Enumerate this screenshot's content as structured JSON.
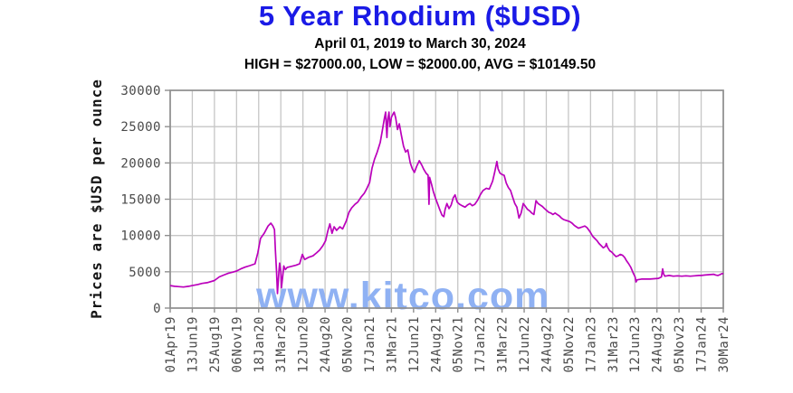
{
  "header": {
    "title": "5 Year Rhodium ($USD)",
    "date_range": "April 01, 2019 to March 30, 2024",
    "stats": "HIGH = $27000.00, LOW = $2000.00, AVG = $10149.50"
  },
  "watermark": "www.kitco.com",
  "colors": {
    "title": "#1a1ae6",
    "line": "#bb00bb",
    "grid": "#c6c6c6",
    "border": "#8f8f8f",
    "watermark": "#8fb1f3",
    "tick_text": "#4a4a4a"
  },
  "chart_data": {
    "type": "line",
    "title": "5 Year Rhodium ($USD)",
    "subtitle": "April 01, 2019 to March 30, 2024",
    "high": 27000.0,
    "low": 2000.0,
    "avg": 10149.5,
    "xlabel": "",
    "ylabel": "Prices are $USD per ounce",
    "ylim": [
      0,
      30000
    ],
    "yticks": [
      0,
      5000,
      10000,
      15000,
      20000,
      25000,
      30000
    ],
    "grid": true,
    "legend": "none",
    "xticks": [
      "01Apr19",
      "13Jun19",
      "25Aug19",
      "06Nov19",
      "18Jan20",
      "31Mar20",
      "12Jun20",
      "24Aug20",
      "05Nov20",
      "17Jan21",
      "31Mar21",
      "12Jun21",
      "24Aug21",
      "05Nov21",
      "17Jan22",
      "31Mar22",
      "12Jun22",
      "24Aug22",
      "05Nov22",
      "17Jan23",
      "31Mar23",
      "12Jun23",
      "24Aug23",
      "05Nov23",
      "17Jan24",
      "30Mar24"
    ],
    "points": [
      [
        "2019-04-01",
        3100
      ],
      [
        "2019-04-15",
        3000
      ],
      [
        "2019-05-01",
        2950
      ],
      [
        "2019-05-15",
        2900
      ],
      [
        "2019-06-01",
        3000
      ],
      [
        "2019-06-13",
        3100
      ],
      [
        "2019-07-01",
        3250
      ],
      [
        "2019-07-15",
        3400
      ],
      [
        "2019-08-01",
        3500
      ],
      [
        "2019-08-25",
        3800
      ],
      [
        "2019-09-10",
        4300
      ],
      [
        "2019-09-25",
        4550
      ],
      [
        "2019-10-10",
        4800
      ],
      [
        "2019-10-25",
        4950
      ],
      [
        "2019-11-06",
        5100
      ],
      [
        "2019-11-20",
        5400
      ],
      [
        "2019-12-05",
        5650
      ],
      [
        "2019-12-20",
        5850
      ],
      [
        "2020-01-06",
        6100
      ],
      [
        "2020-01-15",
        7600
      ],
      [
        "2020-01-24",
        9600
      ],
      [
        "2020-02-05",
        10300
      ],
      [
        "2020-02-18",
        11300
      ],
      [
        "2020-02-27",
        11700
      ],
      [
        "2020-03-05",
        11300
      ],
      [
        "2020-03-10",
        10800
      ],
      [
        "2020-03-13",
        8000
      ],
      [
        "2020-03-17",
        5000
      ],
      [
        "2020-03-20",
        2000
      ],
      [
        "2020-03-25",
        5200
      ],
      [
        "2020-03-27",
        6200
      ],
      [
        "2020-03-31",
        5000
      ],
      [
        "2020-04-02",
        2800
      ],
      [
        "2020-04-07",
        4600
      ],
      [
        "2020-04-10",
        5800
      ],
      [
        "2020-04-15",
        5300
      ],
      [
        "2020-04-21",
        5600
      ],
      [
        "2020-05-01",
        5700
      ],
      [
        "2020-05-20",
        5900
      ],
      [
        "2020-06-01",
        6100
      ],
      [
        "2020-06-10",
        7400
      ],
      [
        "2020-06-18",
        6700
      ],
      [
        "2020-07-01",
        7000
      ],
      [
        "2020-07-15",
        7200
      ],
      [
        "2020-07-27",
        7600
      ],
      [
        "2020-08-06",
        8000
      ],
      [
        "2020-08-17",
        8600
      ],
      [
        "2020-08-26",
        9300
      ],
      [
        "2020-09-02",
        10600
      ],
      [
        "2020-09-09",
        11600
      ],
      [
        "2020-09-16",
        10300
      ],
      [
        "2020-09-23",
        11200
      ],
      [
        "2020-10-01",
        10700
      ],
      [
        "2020-10-12",
        11200
      ],
      [
        "2020-10-21",
        10900
      ],
      [
        "2020-11-02",
        12000
      ],
      [
        "2020-11-11",
        13200
      ],
      [
        "2020-11-20",
        13800
      ],
      [
        "2020-12-01",
        14300
      ],
      [
        "2020-12-10",
        14600
      ],
      [
        "2020-12-21",
        15300
      ],
      [
        "2020-12-31",
        15800
      ],
      [
        "2021-01-08",
        16400
      ],
      [
        "2021-01-18",
        17300
      ],
      [
        "2021-01-26",
        19300
      ],
      [
        "2021-02-03",
        20500
      ],
      [
        "2021-02-12",
        21500
      ],
      [
        "2021-02-22",
        22800
      ],
      [
        "2021-03-01",
        24500
      ],
      [
        "2021-03-08",
        26200
      ],
      [
        "2021-03-12",
        27000
      ],
      [
        "2021-03-16",
        23500
      ],
      [
        "2021-03-19",
        26000
      ],
      [
        "2021-03-23",
        27000
      ],
      [
        "2021-03-26",
        25000
      ],
      [
        "2021-03-31",
        26300
      ],
      [
        "2021-04-06",
        26800
      ],
      [
        "2021-04-09",
        27000
      ],
      [
        "2021-04-14",
        26200
      ],
      [
        "2021-04-20",
        24600
      ],
      [
        "2021-04-26",
        25400
      ],
      [
        "2021-05-03",
        23800
      ],
      [
        "2021-05-10",
        22300
      ],
      [
        "2021-05-17",
        21500
      ],
      [
        "2021-05-24",
        21800
      ],
      [
        "2021-06-01",
        20000
      ],
      [
        "2021-06-08",
        19200
      ],
      [
        "2021-06-15",
        18700
      ],
      [
        "2021-06-22",
        19500
      ],
      [
        "2021-07-01",
        20300
      ],
      [
        "2021-07-09",
        19700
      ],
      [
        "2021-07-16",
        19100
      ],
      [
        "2021-07-23",
        18600
      ],
      [
        "2021-07-30",
        18300
      ],
      [
        "2021-08-02",
        14300
      ],
      [
        "2021-08-04",
        18000
      ],
      [
        "2021-08-10",
        17100
      ],
      [
        "2021-08-16",
        16100
      ],
      [
        "2021-08-23",
        15200
      ],
      [
        "2021-08-30",
        14400
      ],
      [
        "2021-09-07",
        13500
      ],
      [
        "2021-09-14",
        12800
      ],
      [
        "2021-09-20",
        12600
      ],
      [
        "2021-09-24",
        13600
      ],
      [
        "2021-09-30",
        14400
      ],
      [
        "2021-10-07",
        13700
      ],
      [
        "2021-10-14",
        14200
      ],
      [
        "2021-10-21",
        15200
      ],
      [
        "2021-10-27",
        15600
      ],
      [
        "2021-11-03",
        14600
      ],
      [
        "2021-11-11",
        14300
      ],
      [
        "2021-11-19",
        14100
      ],
      [
        "2021-11-29",
        13900
      ],
      [
        "2021-12-07",
        14200
      ],
      [
        "2021-12-15",
        14400
      ],
      [
        "2021-12-23",
        14100
      ],
      [
        "2021-12-31",
        14300
      ],
      [
        "2022-01-10",
        14900
      ],
      [
        "2022-01-18",
        15600
      ],
      [
        "2022-01-27",
        16200
      ],
      [
        "2022-02-07",
        16500
      ],
      [
        "2022-02-17",
        16400
      ],
      [
        "2022-02-28",
        17500
      ],
      [
        "2022-03-07",
        18800
      ],
      [
        "2022-03-14",
        20200
      ],
      [
        "2022-03-18",
        19200
      ],
      [
        "2022-03-24",
        18600
      ],
      [
        "2022-03-31",
        18400
      ],
      [
        "2022-04-07",
        18300
      ],
      [
        "2022-04-14",
        17200
      ],
      [
        "2022-04-21",
        16600
      ],
      [
        "2022-04-28",
        16200
      ],
      [
        "2022-05-05",
        15300
      ],
      [
        "2022-05-12",
        14400
      ],
      [
        "2022-05-19",
        13900
      ],
      [
        "2022-05-26",
        12400
      ],
      [
        "2022-06-02",
        13100
      ],
      [
        "2022-06-09",
        14400
      ],
      [
        "2022-06-16",
        14000
      ],
      [
        "2022-06-23",
        13600
      ],
      [
        "2022-06-30",
        13400
      ],
      [
        "2022-07-07",
        13100
      ],
      [
        "2022-07-14",
        12900
      ],
      [
        "2022-07-21",
        14800
      ],
      [
        "2022-07-28",
        14400
      ],
      [
        "2022-08-04",
        14200
      ],
      [
        "2022-08-11",
        14000
      ],
      [
        "2022-08-18",
        13700
      ],
      [
        "2022-08-24",
        13500
      ],
      [
        "2022-09-01",
        13200
      ],
      [
        "2022-09-08",
        13100
      ],
      [
        "2022-09-15",
        12900
      ],
      [
        "2022-09-22",
        13100
      ],
      [
        "2022-09-29",
        12900
      ],
      [
        "2022-10-06",
        12700
      ],
      [
        "2022-10-13",
        12400
      ],
      [
        "2022-10-20",
        12200
      ],
      [
        "2022-10-27",
        12100
      ],
      [
        "2022-11-03",
        12000
      ],
      [
        "2022-11-10",
        11900
      ],
      [
        "2022-11-17",
        11700
      ],
      [
        "2022-11-24",
        11400
      ],
      [
        "2022-12-01",
        11200
      ],
      [
        "2022-12-08",
        11000
      ],
      [
        "2022-12-15",
        11100
      ],
      [
        "2022-12-22",
        11200
      ],
      [
        "2022-12-29",
        11300
      ],
      [
        "2023-01-05",
        11100
      ],
      [
        "2023-01-12",
        10700
      ],
      [
        "2023-01-17",
        10400
      ],
      [
        "2023-01-24",
        9900
      ],
      [
        "2023-01-31",
        9600
      ],
      [
        "2023-02-07",
        9300
      ],
      [
        "2023-02-14",
        8900
      ],
      [
        "2023-02-21",
        8600
      ],
      [
        "2023-02-28",
        8300
      ],
      [
        "2023-03-07",
        8500
      ],
      [
        "2023-03-10",
        8900
      ],
      [
        "2023-03-14",
        8400
      ],
      [
        "2023-03-21",
        7900
      ],
      [
        "2023-03-28",
        7700
      ],
      [
        "2023-04-04",
        7400
      ],
      [
        "2023-04-11",
        7100
      ],
      [
        "2023-04-18",
        7200
      ],
      [
        "2023-04-25",
        7400
      ],
      [
        "2023-05-02",
        7300
      ],
      [
        "2023-05-09",
        7000
      ],
      [
        "2023-05-16",
        6500
      ],
      [
        "2023-05-23",
        6100
      ],
      [
        "2023-05-30",
        5600
      ],
      [
        "2023-06-06",
        4900
      ],
      [
        "2023-06-13",
        4300
      ],
      [
        "2023-06-16",
        3600
      ],
      [
        "2023-06-20",
        3900
      ],
      [
        "2023-06-27",
        3950
      ],
      [
        "2023-07-04",
        4000
      ],
      [
        "2023-07-18",
        4000
      ],
      [
        "2023-08-01",
        4000
      ],
      [
        "2023-08-15",
        4050
      ],
      [
        "2023-08-29",
        4100
      ],
      [
        "2023-09-08",
        4300
      ],
      [
        "2023-09-12",
        5400
      ],
      [
        "2023-09-15",
        4700
      ],
      [
        "2023-09-19",
        4400
      ],
      [
        "2023-09-26",
        4450
      ],
      [
        "2023-10-03",
        4500
      ],
      [
        "2023-10-17",
        4400
      ],
      [
        "2023-10-31",
        4450
      ],
      [
        "2023-11-14",
        4400
      ],
      [
        "2023-11-28",
        4450
      ],
      [
        "2023-12-12",
        4400
      ],
      [
        "2023-12-26",
        4450
      ],
      [
        "2024-01-09",
        4500
      ],
      [
        "2024-01-17",
        4500
      ],
      [
        "2024-01-30",
        4550
      ],
      [
        "2024-02-13",
        4600
      ],
      [
        "2024-02-27",
        4650
      ],
      [
        "2024-03-05",
        4550
      ],
      [
        "2024-03-12",
        4500
      ],
      [
        "2024-03-19",
        4600
      ],
      [
        "2024-03-26",
        4750
      ],
      [
        "2024-03-30",
        4700
      ]
    ]
  }
}
